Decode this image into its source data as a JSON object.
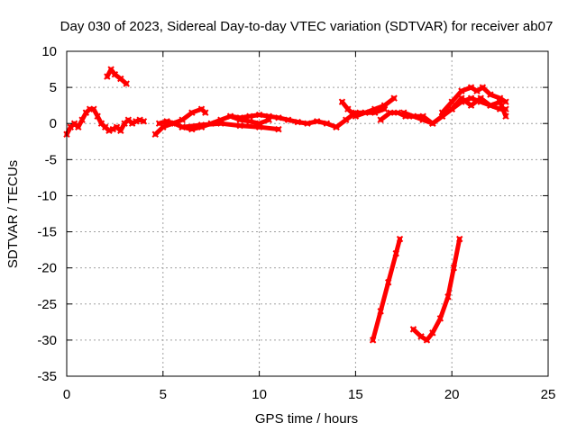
{
  "chart_data": {
    "type": "line",
    "title": "Day 030 of 2023, Sidereal Day-to-day VTEC variation (SDTVAR) for receiver ab07",
    "xlabel": "GPS time / hours",
    "ylabel": "SDTVAR / TECUs",
    "xlim": [
      0,
      25
    ],
    "ylim": [
      -35,
      10
    ],
    "xticks": [
      0,
      5,
      10,
      15,
      20,
      25
    ],
    "yticks": [
      -35,
      -30,
      -25,
      -20,
      -15,
      -10,
      -5,
      0,
      5,
      10
    ],
    "grid": true,
    "legend": "none",
    "series_color": "#ff0000",
    "series": [
      {
        "x": [
          0.0,
          0.2,
          0.4,
          0.6,
          0.8,
          1.0,
          1.2,
          1.4,
          1.6,
          1.8,
          2.0,
          2.2,
          2.4,
          2.6,
          2.8,
          3.0,
          3.2,
          3.4,
          3.6,
          3.8,
          4.0
        ],
        "y": [
          -1.5,
          -0.5,
          0.0,
          -0.5,
          0.5,
          1.5,
          2.0,
          2.0,
          1.0,
          0.0,
          -0.5,
          -1.0,
          -0.8,
          -0.5,
          -1.0,
          0.0,
          0.5,
          0.0,
          0.3,
          0.5,
          0.3
        ]
      },
      {
        "x": [
          2.1,
          2.3,
          2.5,
          2.8,
          3.1
        ],
        "y": [
          6.5,
          7.5,
          6.8,
          6.2,
          5.5
        ]
      },
      {
        "x": [
          4.6,
          5.0,
          5.5,
          6.0,
          6.5,
          7.0,
          7.2
        ],
        "y": [
          -1.5,
          -0.5,
          0.0,
          0.5,
          1.5,
          2.0,
          1.5
        ]
      },
      {
        "x": [
          4.8,
          5.2,
          5.6,
          6.0,
          6.5,
          7.0,
          7.5,
          8.0,
          8.5,
          9.0,
          9.5,
          10.0,
          10.5
        ],
        "y": [
          0.0,
          0.3,
          0.0,
          -0.5,
          -0.8,
          -0.5,
          0.0,
          0.5,
          1.0,
          0.5,
          0.3,
          0.0,
          0.5
        ]
      },
      {
        "x": [
          6.0,
          7.0,
          8.0,
          9.0,
          10.0,
          11.0
        ],
        "y": [
          -0.5,
          -0.2,
          0.0,
          -0.3,
          -0.5,
          -0.8
        ]
      },
      {
        "x": [
          8.5,
          9.0,
          9.5,
          10.0,
          10.5,
          11.0,
          11.5,
          12.0,
          12.5,
          13.0,
          13.5,
          14.0
        ],
        "y": [
          1.0,
          0.8,
          1.0,
          1.2,
          1.0,
          0.8,
          0.5,
          0.2,
          0.0,
          0.3,
          0.0,
          -0.5
        ]
      },
      {
        "x": [
          14.0,
          14.5,
          15.0,
          15.5,
          16.0,
          16.5,
          17.0
        ],
        "y": [
          -0.5,
          0.5,
          1.5,
          1.5,
          2.0,
          2.5,
          3.5
        ]
      },
      {
        "x": [
          14.3,
          14.6,
          15.0,
          15.5,
          16.0,
          16.5
        ],
        "y": [
          3.0,
          2.0,
          1.0,
          1.5,
          1.5,
          2.0
        ]
      },
      {
        "x": [
          16.3,
          16.8,
          17.2,
          17.6,
          18.0,
          18.5,
          19.0,
          19.5,
          20.0
        ],
        "y": [
          0.5,
          1.5,
          1.5,
          1.0,
          1.0,
          1.0,
          0.0,
          1.0,
          2.0
        ]
      },
      {
        "x": [
          17.5,
          18.0,
          18.5,
          19.0,
          19.5,
          20.0,
          20.5,
          21.0,
          21.5,
          22.0,
          22.5,
          22.8
        ],
        "y": [
          1.5,
          1.0,
          0.5,
          0.0,
          1.0,
          2.0,
          3.0,
          3.5,
          3.0,
          2.5,
          2.0,
          2.0
        ]
      },
      {
        "x": [
          19.5,
          20.0,
          20.5,
          21.0,
          21.3,
          21.6,
          22.0,
          22.5,
          22.8
        ],
        "y": [
          1.5,
          3.0,
          4.5,
          5.0,
          4.5,
          5.0,
          4.0,
          3.5,
          3.0
        ]
      },
      {
        "x": [
          20.0,
          20.5,
          21.0,
          21.5,
          22.0,
          22.5,
          22.8
        ],
        "y": [
          2.0,
          3.5,
          2.5,
          3.5,
          2.5,
          3.0,
          1.0
        ]
      },
      {
        "x": [
          15.9,
          16.3,
          16.7,
          17.1,
          17.3
        ],
        "y": [
          -30.0,
          -26.0,
          -22.0,
          -18.0,
          -16.0
        ]
      },
      {
        "x": [
          18.0,
          18.4,
          18.7,
          19.0,
          19.4,
          19.8,
          20.1,
          20.4
        ],
        "y": [
          -28.5,
          -29.5,
          -30.0,
          -29.0,
          -27.0,
          -24.0,
          -20.0,
          -16.0
        ]
      }
    ]
  }
}
